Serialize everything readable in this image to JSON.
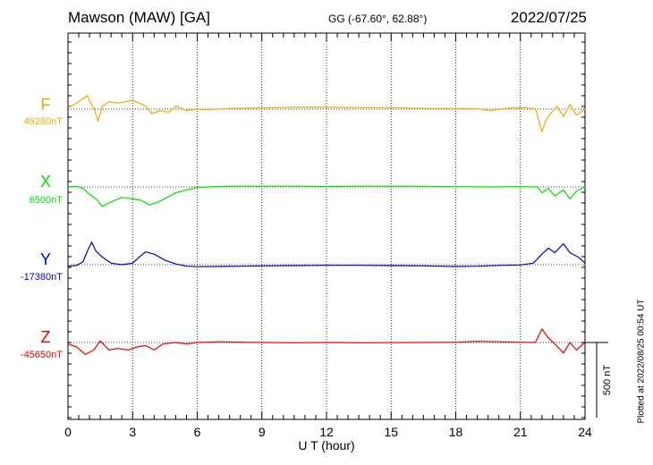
{
  "header": {
    "station": "Mawson (MAW)  [GA]",
    "coords": "GG (-67.60°,  62.88°)",
    "date": "2022/07/25"
  },
  "plotted_note": "Plotted at 2022/08/25 00:54 UT",
  "colors": {
    "F": "#f5a800",
    "X": "#00e000",
    "Y": "#0000dd",
    "Z": "#ee0000"
  },
  "chart_data": {
    "type": "line",
    "title": "Mawson (MAW)  [GA]",
    "xlabel": "U T (hour)",
    "xlim": [
      0,
      24
    ],
    "xticks": [
      "0",
      "3",
      "6",
      "9",
      "12",
      "15",
      "18",
      "21",
      "24"
    ],
    "grid": "vertical dotted lines every 3 hours",
    "scale_bar": {
      "label": "500 nT",
      "value": 500
    },
    "series": [
      {
        "name": "F",
        "baseline_label": "49280nT",
        "baseline": 49280,
        "points": [
          [
            0,
            49290
          ],
          [
            0.3,
            49310
          ],
          [
            0.6,
            49340
          ],
          [
            0.9,
            49370
          ],
          [
            1.05,
            49320
          ],
          [
            1.2,
            49290
          ],
          [
            1.4,
            49200
          ],
          [
            1.6,
            49300
          ],
          [
            1.9,
            49330
          ],
          [
            2.3,
            49320
          ],
          [
            2.7,
            49330
          ],
          [
            3.0,
            49340
          ],
          [
            3.3,
            49320
          ],
          [
            3.6,
            49300
          ],
          [
            3.9,
            49250
          ],
          [
            4.3,
            49270
          ],
          [
            4.7,
            49260
          ],
          [
            5.0,
            49300
          ],
          [
            5.5,
            49270
          ],
          [
            6.0,
            49280
          ],
          [
            6.5,
            49275
          ],
          [
            7.5,
            49285
          ],
          [
            9,
            49288
          ],
          [
            10.5,
            49292
          ],
          [
            12,
            49292
          ],
          [
            13.5,
            49290
          ],
          [
            15,
            49290
          ],
          [
            16.5,
            49285
          ],
          [
            18,
            49284
          ],
          [
            19.0,
            49282
          ],
          [
            19.6,
            49270
          ],
          [
            20.0,
            49278
          ],
          [
            20.5,
            49288
          ],
          [
            21.2,
            49290
          ],
          [
            21.7,
            49282
          ],
          [
            22.0,
            49130
          ],
          [
            22.2,
            49210
          ],
          [
            22.4,
            49250
          ],
          [
            22.7,
            49300
          ],
          [
            23.0,
            49230
          ],
          [
            23.3,
            49310
          ],
          [
            23.6,
            49240
          ],
          [
            24,
            49280
          ]
        ]
      },
      {
        "name": "X",
        "baseline_label": "6500nT",
        "baseline": 6500,
        "points": [
          [
            0,
            6500
          ],
          [
            0.4,
            6505
          ],
          [
            0.7,
            6490
          ],
          [
            1.0,
            6450
          ],
          [
            1.3,
            6420
          ],
          [
            1.6,
            6370
          ],
          [
            2.0,
            6400
          ],
          [
            2.5,
            6430
          ],
          [
            3.0,
            6420
          ],
          [
            3.4,
            6410
          ],
          [
            3.8,
            6380
          ],
          [
            4.2,
            6400
          ],
          [
            4.6,
            6430
          ],
          [
            5.0,
            6460
          ],
          [
            5.5,
            6480
          ],
          [
            6.0,
            6495
          ],
          [
            6.5,
            6500
          ],
          [
            7.5,
            6505
          ],
          [
            9,
            6505
          ],
          [
            10.5,
            6505
          ],
          [
            12,
            6503
          ],
          [
            13.5,
            6505
          ],
          [
            15,
            6505
          ],
          [
            16.5,
            6504
          ],
          [
            18,
            6502
          ],
          [
            19.5,
            6500
          ],
          [
            21,
            6502
          ],
          [
            21.8,
            6500
          ],
          [
            22.0,
            6460
          ],
          [
            22.3,
            6490
          ],
          [
            22.6,
            6440
          ],
          [
            23.0,
            6480
          ],
          [
            23.3,
            6420
          ],
          [
            23.6,
            6470
          ],
          [
            24,
            6500
          ]
        ]
      },
      {
        "name": "Y",
        "baseline_label": "-17380nT",
        "baseline": -17380,
        "points": [
          [
            0,
            -17390
          ],
          [
            0.4,
            -17385
          ],
          [
            0.7,
            -17360
          ],
          [
            0.9,
            -17290
          ],
          [
            1.1,
            -17230
          ],
          [
            1.3,
            -17290
          ],
          [
            1.6,
            -17330
          ],
          [
            2.0,
            -17370
          ],
          [
            2.5,
            -17380
          ],
          [
            3.0,
            -17370
          ],
          [
            3.3,
            -17330
          ],
          [
            3.6,
            -17295
          ],
          [
            4.0,
            -17310
          ],
          [
            4.5,
            -17350
          ],
          [
            5.0,
            -17375
          ],
          [
            5.5,
            -17390
          ],
          [
            6.0,
            -17393
          ],
          [
            7.0,
            -17392
          ],
          [
            8,
            -17390
          ],
          [
            9,
            -17388
          ],
          [
            10.5,
            -17386
          ],
          [
            12,
            -17384
          ],
          [
            13.5,
            -17384
          ],
          [
            15,
            -17386
          ],
          [
            16.5,
            -17388
          ],
          [
            18,
            -17392
          ],
          [
            19,
            -17390
          ],
          [
            20,
            -17385
          ],
          [
            21,
            -17382
          ],
          [
            21.6,
            -17370
          ],
          [
            22.0,
            -17310
          ],
          [
            22.3,
            -17270
          ],
          [
            22.6,
            -17300
          ],
          [
            23.0,
            -17240
          ],
          [
            23.3,
            -17300
          ],
          [
            23.7,
            -17330
          ],
          [
            24,
            -17370
          ]
        ]
      },
      {
        "name": "Z",
        "baseline_label": "-45650nT",
        "baseline": -45650,
        "points": [
          [
            0,
            -45660
          ],
          [
            0.4,
            -45680
          ],
          [
            0.8,
            -45730
          ],
          [
            1.2,
            -45700
          ],
          [
            1.5,
            -45640
          ],
          [
            1.9,
            -45700
          ],
          [
            2.3,
            -45690
          ],
          [
            2.8,
            -45700
          ],
          [
            3.2,
            -45680
          ],
          [
            3.6,
            -45670
          ],
          [
            4.0,
            -45700
          ],
          [
            4.4,
            -45660
          ],
          [
            5.0,
            -45650
          ],
          [
            5.5,
            -45660
          ],
          [
            6.0,
            -45650
          ],
          [
            7.0,
            -45645
          ],
          [
            8,
            -45648
          ],
          [
            9,
            -45650
          ],
          [
            10.5,
            -45652
          ],
          [
            12,
            -45650
          ],
          [
            13.5,
            -45652
          ],
          [
            15,
            -45651
          ],
          [
            16.5,
            -45650
          ],
          [
            18,
            -45648
          ],
          [
            19,
            -45642
          ],
          [
            20,
            -45645
          ],
          [
            21,
            -45648
          ],
          [
            21.7,
            -45650
          ],
          [
            22.0,
            -45560
          ],
          [
            22.3,
            -45620
          ],
          [
            22.6,
            -45660
          ],
          [
            23.0,
            -45720
          ],
          [
            23.3,
            -45650
          ],
          [
            23.6,
            -45700
          ],
          [
            24,
            -45650
          ]
        ]
      }
    ]
  }
}
